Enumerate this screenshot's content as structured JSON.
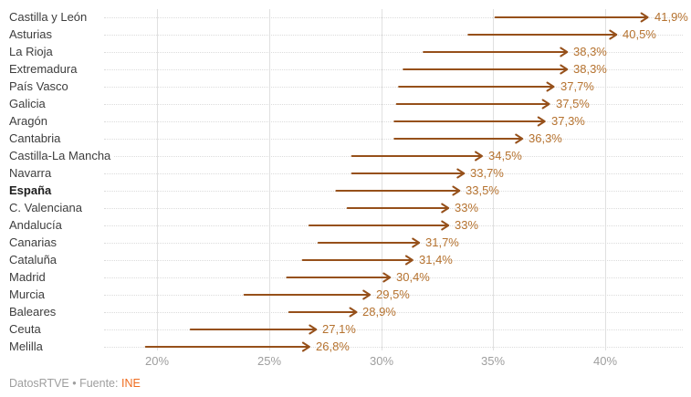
{
  "footer": {
    "brand": "DatosRTVE",
    "separator": " • ",
    "source_prefix": "Fuente: ",
    "source": "INE"
  },
  "colors": {
    "arrow": "#96501a",
    "value_label": "#b5722f",
    "category_label": "#3d3d3d",
    "category_label_bold": "#1d1d1d",
    "tick_label": "#9e9e9e",
    "vertical_gridline": "#e0e0e0",
    "row_dotted_line": "#dcdcdc",
    "footer_text": "#9e9e9e",
    "footer_source": "#ef6c1f",
    "background": "#ffffff"
  },
  "chart_data": {
    "type": "arrow",
    "orientation": "horizontal-rows",
    "unit": "%",
    "decimal_separator": ",",
    "legend": "none",
    "grid": {
      "vertical": "solid",
      "row_leaders": "dotted"
    },
    "categories": [
      "Castilla y León",
      "Asturias",
      "La Rioja",
      "Extremadura",
      "País Vasco",
      "Galicia",
      "Aragón",
      "Cantabria",
      "Castilla-La Mancha",
      "Navarra",
      "España",
      "C. Valenciana",
      "Andalucía",
      "Canarias",
      "Cataluña",
      "Madrid",
      "Murcia",
      "Baleares",
      "Ceuta",
      "Melilla"
    ],
    "bold_category": "España",
    "series": [
      {
        "name": "start",
        "values": [
          35.1,
          33.9,
          31.9,
          31.0,
          30.8,
          30.7,
          30.6,
          30.6,
          28.7,
          28.7,
          28.0,
          28.5,
          26.8,
          27.2,
          26.5,
          25.8,
          23.9,
          25.9,
          21.5,
          19.5
        ]
      },
      {
        "name": "end",
        "values": [
          41.9,
          40.5,
          38.3,
          38.3,
          37.7,
          37.5,
          37.3,
          36.3,
          34.5,
          33.7,
          33.5,
          33.0,
          33.0,
          31.7,
          31.4,
          30.4,
          29.5,
          28.9,
          27.1,
          26.8
        ]
      }
    ],
    "value_labels": [
      "41,9%",
      "40,5%",
      "38,3%",
      "38,3%",
      "37,7%",
      "37,5%",
      "37,3%",
      "36,3%",
      "34,5%",
      "33,7%",
      "33,5%",
      "33%",
      "33%",
      "31,7%",
      "31,4%",
      "30,4%",
      "29,5%",
      "28,9%",
      "27,1%",
      "26,8%"
    ],
    "x_axis": {
      "ticks": [
        20,
        25,
        30,
        35,
        40
      ],
      "tick_labels": [
        "20%",
        "25%",
        "30%",
        "35%",
        "40%"
      ],
      "range": [
        17.6,
        43.9
      ]
    }
  }
}
